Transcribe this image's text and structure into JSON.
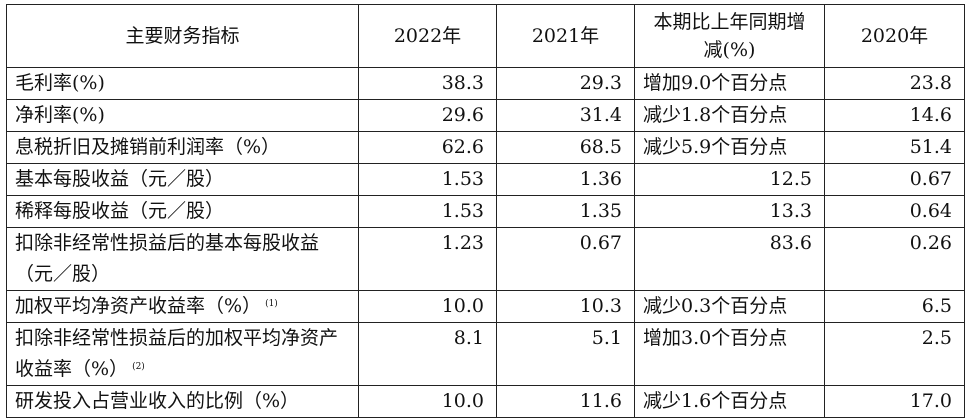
{
  "table": {
    "headers": [
      "主要财务指标",
      "2022年",
      "2021年",
      "本期比上年同期增减(%)",
      "2020年"
    ],
    "rows": [
      {
        "label": "毛利率(%)",
        "note": "",
        "y2022": "38.3",
        "y2021": "29.3",
        "change": "增加9.0个百分点",
        "change_numeric": false,
        "y2020": "23.8"
      },
      {
        "label": "净利率(%)",
        "note": "",
        "y2022": "29.6",
        "y2021": "31.4",
        "change": "减少1.8个百分点",
        "change_numeric": false,
        "y2020": "14.6"
      },
      {
        "label": "息税折旧及摊销前利润率（%）",
        "note": "",
        "y2022": "62.6",
        "y2021": "68.5",
        "change": "减少5.9个百分点",
        "change_numeric": false,
        "y2020": "51.4"
      },
      {
        "label": "基本每股收益（元／股）",
        "note": "",
        "y2022": "1.53",
        "y2021": "1.36",
        "change": "12.5",
        "change_numeric": true,
        "y2020": "0.67"
      },
      {
        "label": "稀释每股收益（元／股）",
        "note": "",
        "y2022": "1.53",
        "y2021": "1.35",
        "change": "13.3",
        "change_numeric": true,
        "y2020": "0.64"
      },
      {
        "label": "扣除非经常性损益后的基本每股收益（元／股）",
        "note": "",
        "y2022": "1.23",
        "y2021": "0.67",
        "change": "83.6",
        "change_numeric": true,
        "y2020": "0.26"
      },
      {
        "label": "加权平均净资产收益率（%）",
        "note": "(1)",
        "y2022": "10.0",
        "y2021": "10.3",
        "change": "减少0.3个百分点",
        "change_numeric": false,
        "y2020": "6.5"
      },
      {
        "label": "扣除非经常性损益后的加权平均净资产收益率（%）",
        "note": "(2)",
        "y2022": "8.1",
        "y2021": "5.1",
        "change": "增加3.0个百分点",
        "change_numeric": false,
        "y2020": "2.5"
      },
      {
        "label": "研发投入占营业收入的比例（%）",
        "note": "",
        "y2022": "10.0",
        "y2021": "11.6",
        "change": "减少1.6个百分点",
        "change_numeric": false,
        "y2020": "17.0"
      }
    ]
  }
}
